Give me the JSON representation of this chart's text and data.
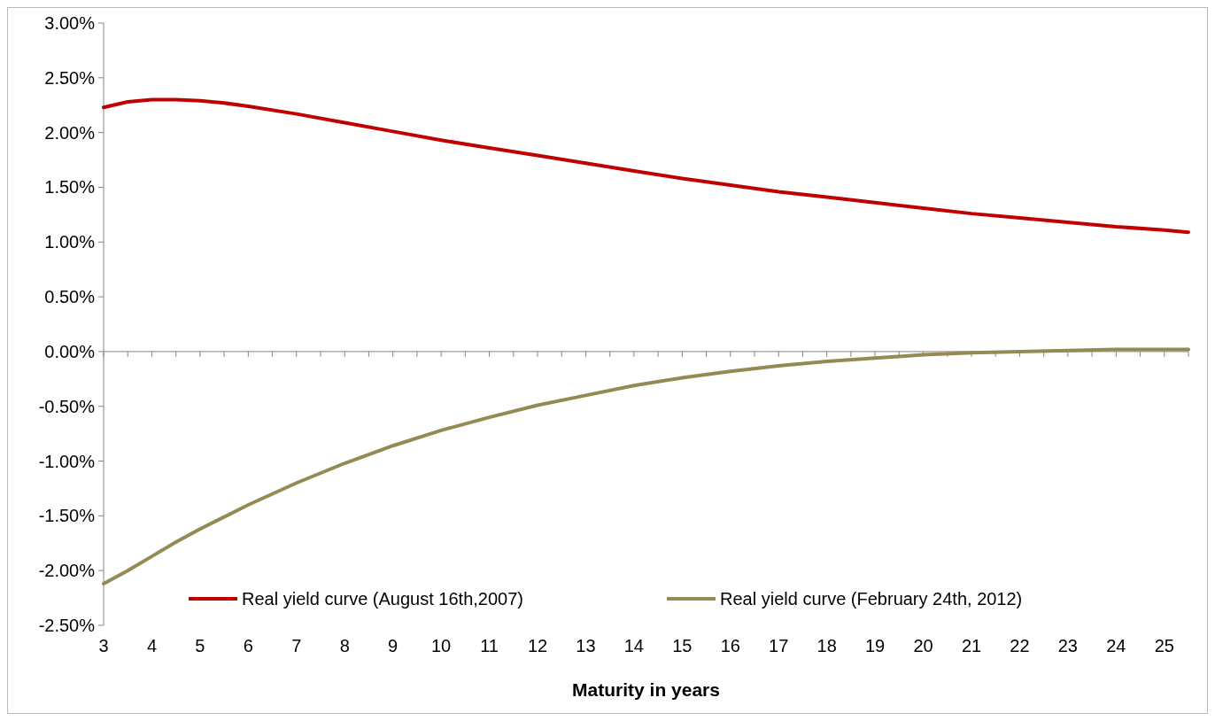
{
  "chart_data": {
    "type": "line",
    "xlabel": "Maturity in years",
    "x": [
      3,
      3.5,
      4,
      4.5,
      5,
      5.5,
      6,
      7,
      8,
      9,
      10,
      11,
      12,
      13,
      14,
      15,
      16,
      17,
      18,
      19,
      20,
      21,
      22,
      23,
      24,
      25,
      25.5
    ],
    "series": [
      {
        "name": "Real yield curve (August 16th,2007)",
        "color": "#c00000",
        "values": [
          2.23,
          2.28,
          2.3,
          2.3,
          2.29,
          2.27,
          2.24,
          2.17,
          2.09,
          2.01,
          1.93,
          1.86,
          1.79,
          1.72,
          1.65,
          1.58,
          1.52,
          1.46,
          1.41,
          1.36,
          1.31,
          1.26,
          1.22,
          1.18,
          1.14,
          1.11,
          1.09
        ]
      },
      {
        "name": "Real yield curve (February 24th, 2012)",
        "color": "#948a54",
        "values": [
          -2.12,
          -2.0,
          -1.87,
          -1.74,
          -1.62,
          -1.51,
          -1.4,
          -1.2,
          -1.02,
          -0.86,
          -0.72,
          -0.6,
          -0.49,
          -0.4,
          -0.31,
          -0.24,
          -0.18,
          -0.13,
          -0.09,
          -0.06,
          -0.03,
          -0.01,
          0.0,
          0.01,
          0.02,
          0.02,
          0.02
        ]
      }
    ],
    "xlim": [
      3,
      25.5
    ],
    "xticks": [
      3,
      {
        "value": 3.5,
        "label": null
      },
      4,
      {
        "value": 4.5,
        "label": null
      },
      5,
      {
        "value": 5.5,
        "label": null
      },
      6,
      {
        "value": 6.5,
        "label": null
      },
      7,
      {
        "value": 7.5,
        "label": null
      },
      8,
      {
        "value": 8.5,
        "label": null
      },
      9,
      {
        "value": 9.5,
        "label": null
      },
      10,
      {
        "value": 10.5,
        "label": null
      },
      11,
      {
        "value": 11.5,
        "label": null
      },
      12,
      {
        "value": 12.5,
        "label": null
      },
      13,
      {
        "value": 13.5,
        "label": null
      },
      14,
      {
        "value": 14.5,
        "label": null
      },
      15,
      {
        "value": 15.5,
        "label": null
      },
      16,
      {
        "value": 16.5,
        "label": null
      },
      17,
      {
        "value": 17.5,
        "label": null
      },
      18,
      {
        "value": 18.5,
        "label": null
      },
      19,
      {
        "value": 19.5,
        "label": null
      },
      20,
      {
        "value": 20.5,
        "label": null
      },
      21,
      {
        "value": 21.5,
        "label": null
      },
      22,
      {
        "value": 22.5,
        "label": null
      },
      23,
      {
        "value": 23.5,
        "label": null
      },
      24,
      {
        "value": 24.5,
        "label": null
      },
      25,
      {
        "value": 25.5,
        "label": null
      }
    ],
    "ylim": [
      -2.5,
      3
    ],
    "yticks": [
      {
        "value": -2.5,
        "label": "-2.50%"
      },
      {
        "value": -2,
        "label": "-2.00%"
      },
      {
        "value": -1.5,
        "label": "-1.50%"
      },
      {
        "value": -1,
        "label": "-1.00%"
      },
      {
        "value": -0.5,
        "label": "-0.50%"
      },
      {
        "value": 0,
        "label": "0.00%"
      },
      {
        "value": 0.5,
        "label": "0.50%"
      },
      {
        "value": 1,
        "label": "1.00%"
      },
      {
        "value": 1.5,
        "label": "1.50%"
      },
      {
        "value": 2,
        "label": "2.00%"
      },
      {
        "value": 2.5,
        "label": "2.50%"
      },
      {
        "value": 3,
        "label": "3.00%"
      }
    ],
    "legend": "bottom",
    "marker": "none",
    "line_style": "solid"
  }
}
